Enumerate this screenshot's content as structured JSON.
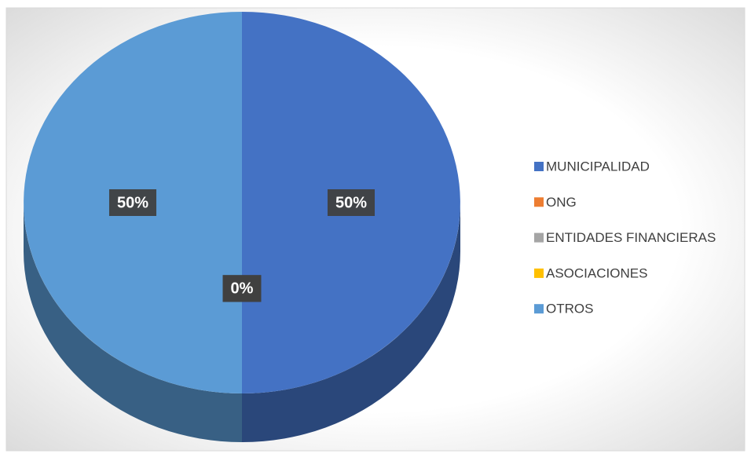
{
  "chart_data": {
    "type": "pie",
    "categories": [
      "MUNICIPALIDAD",
      "ONG",
      "ENTIDADES FINANCIERAS",
      "ASOCIACIONES",
      "OTROS"
    ],
    "values": [
      50,
      0,
      0,
      0,
      50
    ],
    "value_labels": [
      "50%",
      "0%",
      "0%",
      "0%",
      "50%"
    ],
    "colors": [
      "#4472c4",
      "#ed7d31",
      "#a5a5a5",
      "#ffc000",
      "#5b9bd5"
    ],
    "legend": "right"
  }
}
